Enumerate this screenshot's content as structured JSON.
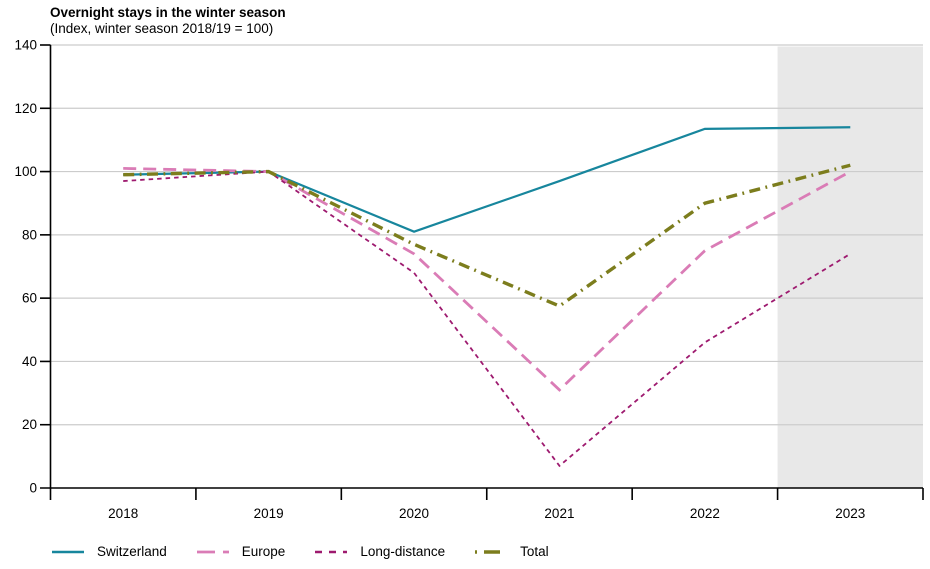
{
  "header": {
    "title": "Overnight stays in the winter season",
    "subtitle": "(Index, winter season 2018/19 = 100)"
  },
  "chart_data": {
    "type": "line",
    "title": "Overnight stays in the winter season",
    "subtitle": "(Index, winter season 2018/19 = 100)",
    "x": [
      "2018",
      "2019",
      "2020",
      "2021",
      "2022",
      "2023"
    ],
    "series": [
      {
        "name": "Switzerland",
        "color": "#17869d",
        "style": "solid",
        "width": 2.2,
        "values": [
          99,
          100,
          81,
          97,
          113.5,
          114
        ]
      },
      {
        "name": "Europe",
        "color": "#da7cb6",
        "style": "long-dash",
        "width": 2.8,
        "values": [
          101,
          100,
          74,
          31,
          75,
          100
        ]
      },
      {
        "name": "Long-distance",
        "color": "#9e1a6f",
        "style": "short-dash",
        "width": 1.8,
        "values": [
          97,
          100,
          68,
          7,
          46,
          74
        ]
      },
      {
        "name": "Total",
        "color": "#7c7d1d",
        "style": "dash-dot",
        "width": 3.4,
        "values": [
          99,
          100,
          77,
          57.5,
          90,
          102
        ]
      }
    ],
    "ylim": [
      0,
      140
    ],
    "yticks": [
      0,
      20,
      40,
      60,
      80,
      100,
      120,
      140
    ],
    "grid": true,
    "legend_position": "bottom",
    "forecast_band": {
      "covers": "2023",
      "from_slot": 5,
      "to_slot": 6,
      "color": "#e8e8e8"
    }
  },
  "axes": {
    "gridline_color": "#cccccc",
    "axis_color": "#000000"
  }
}
